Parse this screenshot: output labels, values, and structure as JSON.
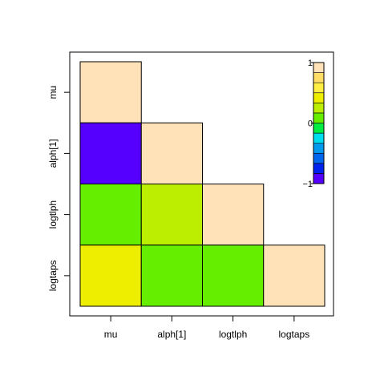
{
  "chart_data": {
    "type": "heatmap",
    "title": "",
    "xlabel": "",
    "ylabel": "",
    "variables": [
      "mu",
      "alph[1]",
      "logtlph",
      "logtaps"
    ],
    "matrix": [
      [
        1.0,
        null,
        null,
        null
      ],
      [
        -0.85,
        1.0,
        null,
        null
      ],
      [
        0.12,
        0.2,
        1.0,
        null
      ],
      [
        0.35,
        0.12,
        0.12,
        1.0
      ]
    ],
    "cells": [
      {
        "row": "mu",
        "col": "mu",
        "value": 1.0
      },
      {
        "row": "alph[1]",
        "col": "mu",
        "value": -0.85
      },
      {
        "row": "alph[1]",
        "col": "alph[1]",
        "value": 1.0
      },
      {
        "row": "logtlph",
        "col": "mu",
        "value": 0.12
      },
      {
        "row": "logtlph",
        "col": "alph[1]",
        "value": 0.2
      },
      {
        "row": "logtlph",
        "col": "logtlph",
        "value": 1.0
      },
      {
        "row": "logtaps",
        "col": "mu",
        "value": 0.35
      },
      {
        "row": "logtaps",
        "col": "alph[1]",
        "value": 0.12
      },
      {
        "row": "logtaps",
        "col": "logtlph",
        "value": 0.12
      },
      {
        "row": "logtaps",
        "col": "logtaps",
        "value": 1.0
      }
    ],
    "colorbar": {
      "ticks": [
        "1",
        "0",
        "−1"
      ],
      "range": [
        -1,
        1
      ],
      "colors": [
        "#5500ff",
        "#0022ee",
        "#0066ee",
        "#0099ee",
        "#00ddee",
        "#00ee44",
        "#66ee00",
        "#bbee00",
        "#eeee00",
        "#ffee44",
        "#ffdd66",
        "#ffe2b8"
      ]
    },
    "diagonal_color": "#ffe2b8",
    "grid": false,
    "legend_position": "top-right"
  }
}
